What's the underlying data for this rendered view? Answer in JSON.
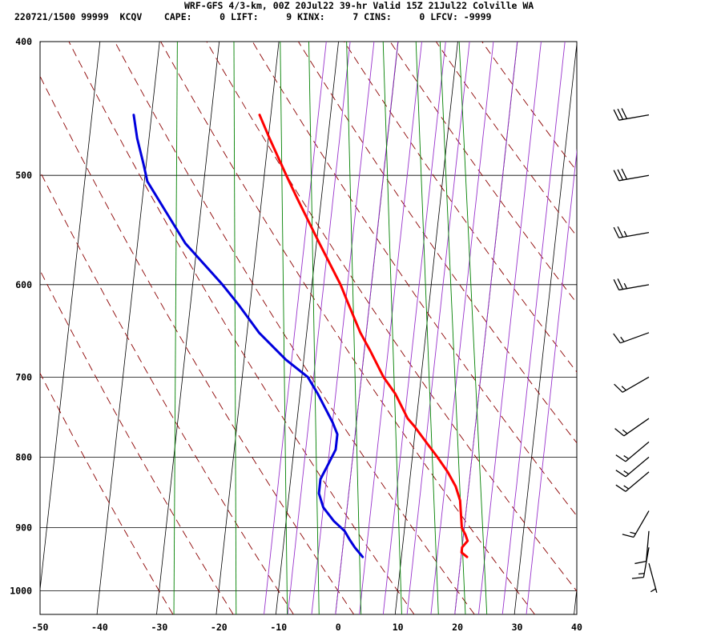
{
  "header": {
    "title": "WRF-GFS 4/3-km, 00Z 20Jul22 39-hr Valid 15Z 21Jul22 Colville WA",
    "meta": "220721/1500 99999  KCQV    CAPE:     0 LIFT:     9 KINX:     7 CINS:     0 LFCV: -9999"
  },
  "colors": {
    "temperature": "#ff0000",
    "dewpoint": "#0000dd",
    "dry_adiabat": "#8b0000",
    "moist_adiabat": "#9933cc",
    "mixing_ratio": "#008000",
    "grid": "#000000"
  },
  "chart_data": {
    "type": "line",
    "subtype": "skew-t log-p sounding",
    "xlim": [
      -50,
      40
    ],
    "ylim": [
      1040,
      400
    ],
    "y_scale": "log",
    "grid": true,
    "x_ticks": [
      "-50",
      "-40",
      "-30",
      "-20",
      "-10",
      "0",
      "10",
      "20",
      "30",
      "40"
    ],
    "y_ticks": [
      "400",
      "500",
      "600",
      "700",
      "800",
      "900",
      "1000"
    ],
    "x_tick_values": [
      -50,
      -40,
      -30,
      -20,
      -10,
      0,
      10,
      20,
      30,
      40
    ],
    "y_tick_values": [
      400,
      500,
      600,
      700,
      800,
      900,
      1000
    ],
    "series": [
      {
        "id": "temperature",
        "color": "#ff0000",
        "points": [
          [
            945,
            21.0
          ],
          [
            938,
            20.0
          ],
          [
            930,
            20.0
          ],
          [
            920,
            20.8
          ],
          [
            910,
            20.3
          ],
          [
            900,
            19.6
          ],
          [
            880,
            19.2
          ],
          [
            860,
            18.8
          ],
          [
            840,
            17.8
          ],
          [
            820,
            16.2
          ],
          [
            800,
            14.2
          ],
          [
            780,
            12.0
          ],
          [
            760,
            9.8
          ],
          [
            750,
            8.5
          ],
          [
            720,
            6.0
          ],
          [
            700,
            3.7
          ],
          [
            670,
            1.0
          ],
          [
            650,
            -1.0
          ],
          [
            620,
            -3.5
          ],
          [
            600,
            -5.2
          ],
          [
            560,
            -9.5
          ],
          [
            520,
            -14.0
          ],
          [
            500,
            -16.3
          ],
          [
            470,
            -19.8
          ],
          [
            452,
            -21.9
          ]
        ]
      },
      {
        "id": "dewpoint",
        "color": "#0000dd",
        "points": [
          [
            945,
            3.5
          ],
          [
            930,
            2.0
          ],
          [
            918,
            1.0
          ],
          [
            905,
            0.0
          ],
          [
            890,
            -2.0
          ],
          [
            870,
            -4.0
          ],
          [
            850,
            -5.0
          ],
          [
            830,
            -5.0
          ],
          [
            810,
            -4.0
          ],
          [
            790,
            -3.0
          ],
          [
            770,
            -3.0
          ],
          [
            755,
            -4.0
          ],
          [
            720,
            -7.0
          ],
          [
            700,
            -9.0
          ],
          [
            680,
            -13.0
          ],
          [
            650,
            -18.0
          ],
          [
            620,
            -22.0
          ],
          [
            600,
            -25.0
          ],
          [
            560,
            -32.0
          ],
          [
            530,
            -36.0
          ],
          [
            505,
            -39.5
          ],
          [
            490,
            -40.5
          ],
          [
            470,
            -42.0
          ],
          [
            452,
            -43.0
          ]
        ]
      }
    ],
    "dry_adiabats_theta_c": [
      -30,
      -20,
      -10,
      0,
      10,
      20,
      30,
      40,
      50,
      60,
      70,
      80,
      90,
      100
    ],
    "moist_adiabats_thetaw_c": [
      -12,
      -8,
      -4,
      0,
      4,
      8,
      12,
      16,
      20,
      24,
      28,
      32
    ],
    "mixing_ratio_lines_gkg": [
      0.4,
      1,
      2,
      3,
      5,
      8,
      12,
      16,
      20
    ],
    "wind_barbs": [
      {
        "p": 452,
        "dir": 260,
        "kt": 30
      },
      {
        "p": 500,
        "dir": 260,
        "kt": 30
      },
      {
        "p": 550,
        "dir": 260,
        "kt": 25
      },
      {
        "p": 600,
        "dir": 260,
        "kt": 25
      },
      {
        "p": 650,
        "dir": 250,
        "kt": 15
      },
      {
        "p": 700,
        "dir": 240,
        "kt": 15
      },
      {
        "p": 750,
        "dir": 235,
        "kt": 15
      },
      {
        "p": 780,
        "dir": 230,
        "kt": 15
      },
      {
        "p": 800,
        "dir": 230,
        "kt": 15
      },
      {
        "p": 820,
        "dir": 230,
        "kt": 15
      },
      {
        "p": 875,
        "dir": 210,
        "kt": 15
      },
      {
        "p": 905,
        "dir": 185,
        "kt": 10
      },
      {
        "p": 930,
        "dir": 190,
        "kt": 15
      },
      {
        "p": 955,
        "dir": 165,
        "kt": 5
      }
    ]
  }
}
